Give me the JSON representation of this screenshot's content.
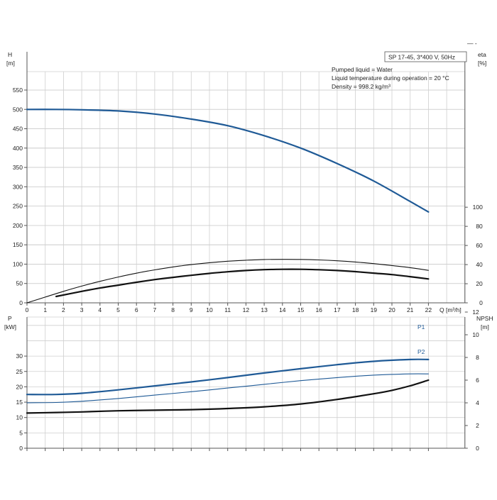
{
  "colors": {
    "pump_blue": "#1f5a96",
    "black": "#111111",
    "grid": "#cfcfcf"
  },
  "header": {
    "corner_marks": "— -"
  },
  "chart_data": [
    {
      "type": "line",
      "panel": "top",
      "title": "SP 17-45, 3*400 V, 50Hz",
      "info_lines": [
        "Pumped liquid = Water",
        "Liquid temperature during operation = 20 °C",
        "Density = 998.2 kg/m³"
      ],
      "xlabel": "Q [m³/h]",
      "x_ticks": [
        "0",
        "1",
        "2",
        "3",
        "4",
        "5",
        "6",
        "7",
        "8",
        "9",
        "10",
        "11",
        "12",
        "13",
        "14",
        "15",
        "16",
        "17",
        "18",
        "19",
        "20",
        "21",
        "22"
      ],
      "xlim": [
        0,
        24
      ],
      "left_axis": {
        "label_top": "H",
        "label_unit": "[m]",
        "ticks": [
          "0",
          "50",
          "100",
          "150",
          "200",
          "250",
          "300",
          "350",
          "400",
          "450",
          "500",
          "550"
        ],
        "ylim": [
          0,
          600
        ]
      },
      "right_axis": {
        "label_top": "eta",
        "label_unit": "[%]",
        "ticks": [
          "0",
          "20",
          "40",
          "60",
          "80",
          "100"
        ],
        "ylim": [
          0,
          100
        ]
      },
      "grid": true,
      "series": [
        {
          "role": "head",
          "axis": "left",
          "color": "#1f5a96",
          "x": [
            0,
            1.6,
            3,
            5,
            7,
            9,
            11,
            13,
            15,
            17,
            19,
            21,
            22
          ],
          "y": [
            500,
            500,
            499,
            496,
            488,
            475,
            458,
            432,
            400,
            360,
            315,
            262,
            235
          ]
        },
        {
          "role": "efficiency-thin",
          "axis": "right",
          "color": "#111111",
          "x": [
            0,
            1,
            2,
            3,
            4,
            5,
            6,
            7,
            8,
            9,
            10,
            11,
            12,
            13,
            14,
            15,
            16,
            17,
            18,
            19,
            20,
            21,
            22
          ],
          "y": [
            0,
            6,
            12,
            17.5,
            22.5,
            27,
            31,
            34.5,
            37.5,
            40,
            42,
            43.5,
            44.6,
            45.3,
            45.5,
            45.4,
            44.9,
            44,
            42.7,
            41,
            39,
            36.8,
            34
          ]
        },
        {
          "role": "efficiency-bold",
          "axis": "right",
          "color": "#111111",
          "x": [
            1.6,
            3,
            4,
            5,
            6,
            7,
            8,
            9,
            10,
            11,
            12,
            13,
            14,
            15,
            16,
            17,
            18,
            19,
            20,
            21,
            22
          ],
          "y": [
            6.7,
            12,
            15.5,
            18.5,
            21.5,
            24.3,
            26.6,
            28.8,
            30.8,
            32.5,
            33.8,
            34.7,
            35.1,
            35.1,
            34.6,
            33.8,
            32.6,
            31.1,
            29.5,
            27.4,
            25
          ]
        }
      ]
    },
    {
      "type": "line",
      "panel": "bottom",
      "xlim": [
        0,
        24
      ],
      "x_ticks_count": 23,
      "left_axis": {
        "label_top": "P",
        "label_unit": "[kW]",
        "ticks": [
          "0",
          "5",
          "10",
          "15",
          "20",
          "25",
          "30"
        ],
        "ylim": [
          0,
          35
        ]
      },
      "right_axis": {
        "label_top": "NPSH",
        "label_unit": "[m]",
        "ticks": [
          "0",
          "2",
          "4",
          "6",
          "8",
          "10",
          "12"
        ],
        "ylim": [
          0,
          14
        ]
      },
      "grid": true,
      "series": [
        {
          "name": "P1",
          "axis": "left",
          "color": "#1f5a96",
          "x": [
            0,
            1.6,
            3,
            5,
            7,
            9,
            11,
            13,
            15,
            17,
            19,
            21,
            22
          ],
          "y": [
            17.5,
            17.5,
            17.9,
            19,
            20.3,
            21.6,
            23,
            24.5,
            25.9,
            27.2,
            28.3,
            28.9,
            28.9
          ]
        },
        {
          "name": "P2",
          "axis": "left",
          "color": "#1f5a96",
          "x": [
            0,
            1.6,
            3,
            5,
            7,
            9,
            11,
            13,
            15,
            17,
            19,
            21,
            22
          ],
          "y": [
            14.8,
            14.9,
            15.3,
            16.2,
            17.3,
            18.4,
            19.6,
            20.8,
            22,
            23,
            23.8,
            24.2,
            24.2
          ]
        },
        {
          "role": "npsh",
          "axis": "right",
          "color": "#111111",
          "x": [
            0,
            1.6,
            3,
            5,
            7,
            9,
            11,
            13,
            15,
            17,
            19,
            20,
            21,
            22
          ],
          "y": [
            3.1,
            3.15,
            3.2,
            3.3,
            3.35,
            3.4,
            3.5,
            3.65,
            3.9,
            4.3,
            4.8,
            5.1,
            5.5,
            6
          ]
        }
      ]
    }
  ]
}
